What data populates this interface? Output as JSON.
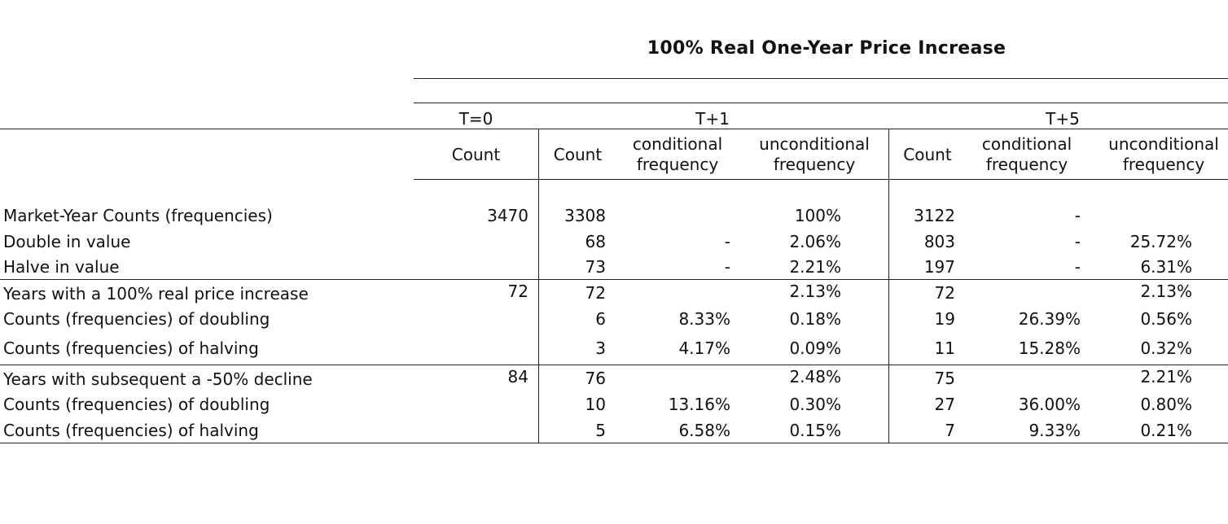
{
  "title": "100% Real One-Year Price Increase",
  "periods": {
    "t0": "T=0",
    "t1": "T+1",
    "t5": "T+5"
  },
  "headers": {
    "count": "Count",
    "cond_line1": "conditional",
    "cond_line2": "frequency",
    "uncond_line1": "unconditional",
    "uncond_line2": "frequency"
  },
  "rows": [
    {
      "label": "Market-Year Counts (frequencies)",
      "t0_count": "3470",
      "t1_count": "3308",
      "t1_cond": "",
      "t1_uncond": "100%",
      "t5_count": "3122",
      "t5_cond": "-",
      "t5_uncond": ""
    },
    {
      "label": "Double in value",
      "t0_count": "",
      "t1_count": "68",
      "t1_cond": "-",
      "t1_uncond": "2.06%",
      "t5_count": "803",
      "t5_cond": "-",
      "t5_uncond": "25.72%"
    },
    {
      "label": "Halve in value",
      "t0_count": "",
      "t1_count": "73",
      "t1_cond": "-",
      "t1_uncond": "2.21%",
      "t5_count": "197",
      "t5_cond": "-",
      "t5_uncond": "6.31%"
    },
    {
      "label": "Years with a 100% real price increase",
      "t0_count": "72",
      "t1_count": "72",
      "t1_cond": "",
      "t1_uncond": "2.13%",
      "t5_count": "72",
      "t5_cond": "",
      "t5_uncond": "2.13%"
    },
    {
      "label": "Counts (frequencies) of doubling",
      "t0_count": "",
      "t1_count": "6",
      "t1_cond": "8.33%",
      "t1_uncond": "0.18%",
      "t5_count": "19",
      "t5_cond": "26.39%",
      "t5_uncond": "0.56%"
    },
    {
      "label": "Counts (frequencies) of halving",
      "t0_count": "",
      "t1_count": "3",
      "t1_cond": "4.17%",
      "t1_uncond": "0.09%",
      "t5_count": "11",
      "t5_cond": "15.28%",
      "t5_uncond": "0.32%"
    },
    {
      "label": "Years with subsequent  a -50% decline",
      "t0_count": "84",
      "t1_count": "76",
      "t1_cond": "",
      "t1_uncond": "2.48%",
      "t5_count": "75",
      "t5_cond": "",
      "t5_uncond": "2.21%"
    },
    {
      "label": "Counts (frequencies) of doubling",
      "t0_count": "",
      "t1_count": "10",
      "t1_cond": "13.16%",
      "t1_uncond": "0.30%",
      "t5_count": "27",
      "t5_cond": "36.00%",
      "t5_uncond": "0.80%"
    },
    {
      "label": "Counts (frequencies) of halving",
      "t0_count": "",
      "t1_count": "5",
      "t1_cond": "6.58%",
      "t1_uncond": "0.15%",
      "t5_count": "7",
      "t5_cond": "9.33%",
      "t5_uncond": "0.21%"
    }
  ]
}
